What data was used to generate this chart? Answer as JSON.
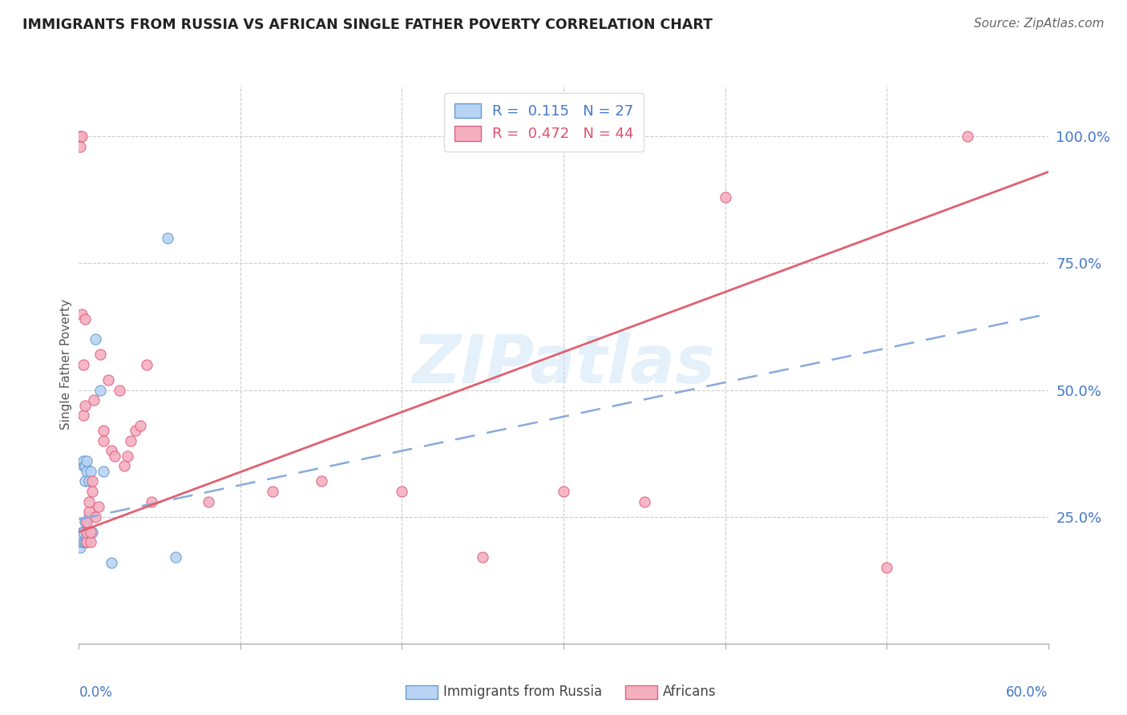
{
  "title": "IMMIGRANTS FROM RUSSIA VS AFRICAN SINGLE FATHER POVERTY CORRELATION CHART",
  "source": "Source: ZipAtlas.com",
  "ylabel": "Single Father Poverty",
  "ytick_labels": [
    "100.0%",
    "75.0%",
    "50.0%",
    "25.0%"
  ],
  "ytick_values": [
    1.0,
    0.75,
    0.5,
    0.25
  ],
  "xlim": [
    0.0,
    0.6
  ],
  "ylim": [
    0.0,
    1.1
  ],
  "russia_color": "#b8d4f5",
  "africa_color": "#f5b0c0",
  "russia_edge_color": "#6699cc",
  "africa_edge_color": "#e06080",
  "russia_line_color": "#88aadd",
  "africa_line_color": "#e06070",
  "watermark_text": "ZIPatlas",
  "russia_R": "0.115",
  "russia_N": "27",
  "africa_R": "0.472",
  "africa_N": "44",
  "russia_scatter_x": [
    0.001,
    0.001,
    0.002,
    0.002,
    0.002,
    0.003,
    0.003,
    0.003,
    0.003,
    0.004,
    0.004,
    0.004,
    0.004,
    0.005,
    0.005,
    0.005,
    0.005,
    0.006,
    0.006,
    0.007,
    0.008,
    0.01,
    0.013,
    0.015,
    0.02,
    0.055,
    0.06
  ],
  "russia_scatter_y": [
    0.21,
    0.19,
    0.22,
    0.2,
    0.21,
    0.2,
    0.22,
    0.35,
    0.36,
    0.2,
    0.24,
    0.32,
    0.35,
    0.2,
    0.21,
    0.34,
    0.36,
    0.25,
    0.32,
    0.34,
    0.22,
    0.6,
    0.5,
    0.34,
    0.16,
    0.8,
    0.17
  ],
  "africa_scatter_x": [
    0.001,
    0.001,
    0.002,
    0.002,
    0.003,
    0.003,
    0.004,
    0.004,
    0.005,
    0.005,
    0.005,
    0.006,
    0.006,
    0.007,
    0.007,
    0.008,
    0.008,
    0.009,
    0.01,
    0.012,
    0.013,
    0.015,
    0.015,
    0.018,
    0.02,
    0.022,
    0.025,
    0.028,
    0.03,
    0.032,
    0.035,
    0.038,
    0.042,
    0.045,
    0.08,
    0.12,
    0.15,
    0.2,
    0.25,
    0.3,
    0.35,
    0.4,
    0.5,
    0.55
  ],
  "africa_scatter_y": [
    1.0,
    0.98,
    1.0,
    0.65,
    0.55,
    0.45,
    0.47,
    0.64,
    0.2,
    0.22,
    0.24,
    0.26,
    0.28,
    0.2,
    0.22,
    0.3,
    0.32,
    0.48,
    0.25,
    0.27,
    0.57,
    0.4,
    0.42,
    0.52,
    0.38,
    0.37,
    0.5,
    0.35,
    0.37,
    0.4,
    0.42,
    0.43,
    0.55,
    0.28,
    0.28,
    0.3,
    0.32,
    0.3,
    0.17,
    0.3,
    0.28,
    0.88,
    0.15,
    1.0
  ],
  "russia_line_x0": 0.0,
  "russia_line_y0": 0.245,
  "russia_line_x1": 0.6,
  "russia_line_y1": 0.65,
  "africa_line_x0": 0.0,
  "africa_line_y0": 0.22,
  "africa_line_x1": 0.6,
  "africa_line_y1": 0.93
}
